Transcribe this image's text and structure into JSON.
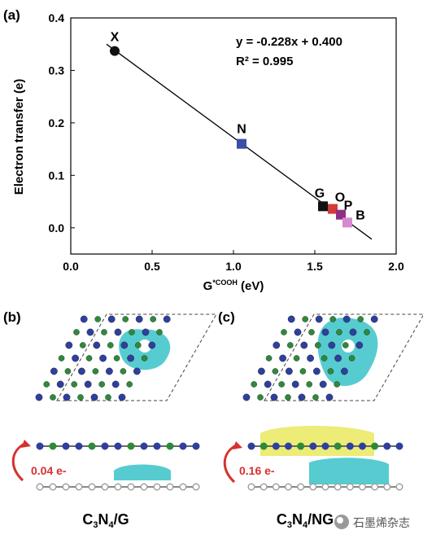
{
  "panels": {
    "a": "(a)",
    "b": "(b)",
    "c": "(c)"
  },
  "chart_data": {
    "type": "scatter",
    "xlabel_main": "G",
    "xlabel_sub": "*COOH",
    "xlabel_unit": " (eV)",
    "ylabel": "Electron transfer (e)",
    "xlim": [
      0.0,
      2.0
    ],
    "ylim": [
      -0.05,
      0.4
    ],
    "xticks": [
      "0.0",
      "0.5",
      "1.0",
      "1.5",
      "2.0"
    ],
    "yticks": [
      "0.0",
      "0.1",
      "0.2",
      "0.3",
      "0.4"
    ],
    "fit_equation": "y = -0.228x + 0.400",
    "r2_text": "R² = 0.995",
    "fit": {
      "slope": -0.228,
      "intercept": 0.4,
      "x_range": [
        0.22,
        1.85
      ]
    },
    "points": [
      {
        "label": "X",
        "x": 0.27,
        "y": 0.337,
        "marker": "circle",
        "color": "#111111"
      },
      {
        "label": "N",
        "x": 1.05,
        "y": 0.16,
        "marker": "square",
        "color": "#3a4fa6"
      },
      {
        "label": "G",
        "x": 1.55,
        "y": 0.041,
        "marker": "square",
        "color": "#111111"
      },
      {
        "label": "O",
        "x": 1.61,
        "y": 0.036,
        "marker": "square",
        "color": "#d23b3b"
      },
      {
        "label": "P",
        "x": 1.66,
        "y": 0.025,
        "marker": "square",
        "color": "#8e2f86"
      },
      {
        "label": "B",
        "x": 1.7,
        "y": 0.01,
        "marker": "square",
        "color": "#d48ad0"
      }
    ]
  },
  "structures": {
    "b": {
      "transfer": "0.04 e-",
      "caption_main": "C",
      "caption_sub1": "3",
      "caption_mid": "N",
      "caption_sub2": "4",
      "caption_tail": "/G"
    },
    "c": {
      "transfer": "0.16 e-",
      "caption_main": "C",
      "caption_sub1": "3",
      "caption_mid": "N",
      "caption_sub2": "4",
      "caption_tail": "/NG"
    }
  },
  "watermark": "石墨烯杂志",
  "colors": {
    "nitrogen": "#2f3f9e",
    "carbon_cn": "#2d8a3a",
    "carbon_g": "#9a9a9a",
    "density_cyan": "#39c3c8",
    "density_yellow": "#e6e64a",
    "arrow": "#d6312e"
  }
}
